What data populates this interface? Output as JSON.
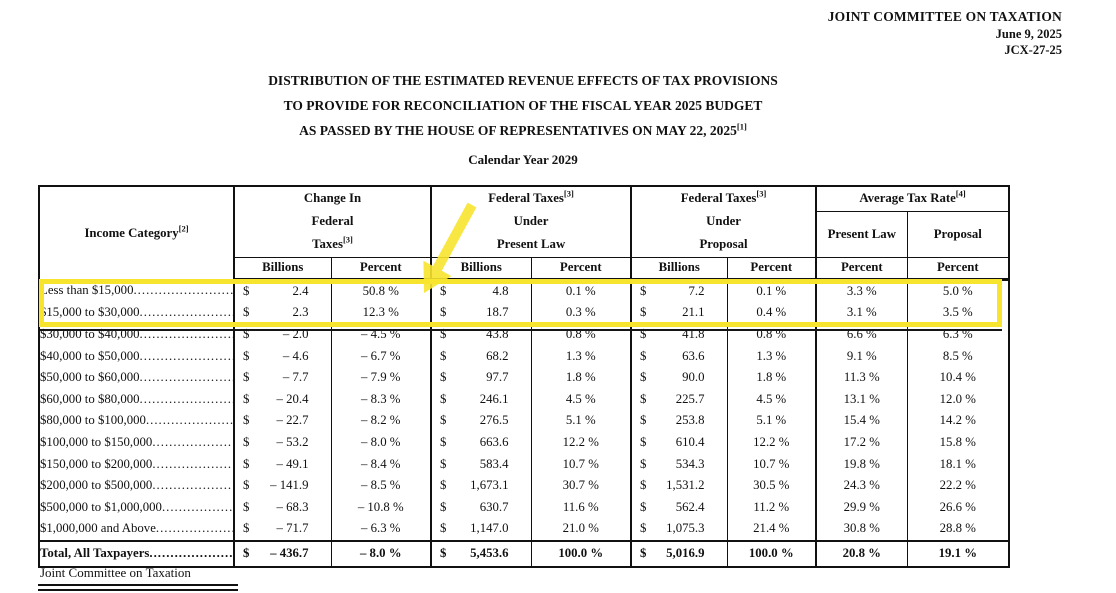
{
  "letterhead": {
    "organization": "JOINT COMMITTEE ON TAXATION",
    "date": "June 9, 2025",
    "document_number": "JCX-27-25"
  },
  "title": {
    "line1": "DISTRIBUTION OF THE ESTIMATED REVENUE EFFECTS OF TAX PROVISIONS",
    "line2": "TO PROVIDE FOR RECONCILIATION OF THE FISCAL YEAR 2025 BUDGET",
    "line3": "AS PASSED BY THE HOUSE OF REPRESENTATIVES ON MAY 22, 2025",
    "line3_footnote": "[1]",
    "subtitle": "Calendar Year 2029"
  },
  "table": {
    "header": {
      "income_category": {
        "text": "Income Category",
        "footnote": "[2]"
      },
      "change_group": {
        "line1": "Change In",
        "line2": "Federal",
        "line3": "Taxes",
        "footnote": "[3]"
      },
      "present_law_group": {
        "line1": "Federal Taxes",
        "footnote": "[3]",
        "line2": "Under",
        "line3": "Present Law"
      },
      "proposal_group": {
        "line1": "Federal Taxes",
        "footnote": "[3]",
        "line2": "Under",
        "line3": "Proposal"
      },
      "avg_rate_group": {
        "title": "Average Tax Rate",
        "footnote": "[4]",
        "col1": "Present\nLaw",
        "col2": "Proposal"
      },
      "sub_headers": [
        "Billions",
        "Percent",
        "Billions",
        "Percent",
        "Billions",
        "Percent",
        "Percent",
        "Percent"
      ],
      "currency_symbol": "$"
    },
    "rows": [
      {
        "category": "Less than $15,000",
        "change_billions": "2.4",
        "change_percent": "50.8 %",
        "present_law_billions": "4.8",
        "present_law_percent": "0.1 %",
        "proposal_billions": "7.2",
        "proposal_percent": "0.1 %",
        "rate_present_law": "3.3 %",
        "rate_proposal": "5.0 %"
      },
      {
        "category": "$15,000 to $30,000",
        "change_billions": "2.3",
        "change_percent": "12.3 %",
        "present_law_billions": "18.7",
        "present_law_percent": "0.3 %",
        "proposal_billions": "21.1",
        "proposal_percent": "0.4 %",
        "rate_present_law": "3.1 %",
        "rate_proposal": "3.5 %"
      },
      {
        "category": "$30,000 to $40,000",
        "change_billions": "– 2.0",
        "change_percent": "– 4.5 %",
        "present_law_billions": "43.8",
        "present_law_percent": "0.8 %",
        "proposal_billions": "41.8",
        "proposal_percent": "0.8 %",
        "rate_present_law": "6.6 %",
        "rate_proposal": "6.3 %"
      },
      {
        "category": "$40,000 to $50,000",
        "change_billions": "– 4.6",
        "change_percent": "– 6.7 %",
        "present_law_billions": "68.2",
        "present_law_percent": "1.3 %",
        "proposal_billions": "63.6",
        "proposal_percent": "1.3 %",
        "rate_present_law": "9.1 %",
        "rate_proposal": "8.5 %"
      },
      {
        "category": "$50,000 to $60,000",
        "change_billions": "– 7.7",
        "change_percent": "– 7.9 %",
        "present_law_billions": "97.7",
        "present_law_percent": "1.8 %",
        "proposal_billions": "90.0",
        "proposal_percent": "1.8 %",
        "rate_present_law": "11.3 %",
        "rate_proposal": "10.4 %"
      },
      {
        "category": "$60,000 to $80,000",
        "change_billions": "– 20.4",
        "change_percent": "– 8.3 %",
        "present_law_billions": "246.1",
        "present_law_percent": "4.5 %",
        "proposal_billions": "225.7",
        "proposal_percent": "4.5 %",
        "rate_present_law": "13.1 %",
        "rate_proposal": "12.0 %"
      },
      {
        "category": "$80,000 to $100,000",
        "change_billions": "– 22.7",
        "change_percent": "– 8.2 %",
        "present_law_billions": "276.5",
        "present_law_percent": "5.1 %",
        "proposal_billions": "253.8",
        "proposal_percent": "5.1 %",
        "rate_present_law": "15.4 %",
        "rate_proposal": "14.2 %"
      },
      {
        "category": "$100,000 to $150,000",
        "change_billions": "– 53.2",
        "change_percent": "– 8.0 %",
        "present_law_billions": "663.6",
        "present_law_percent": "12.2 %",
        "proposal_billions": "610.4",
        "proposal_percent": "12.2 %",
        "rate_present_law": "17.2 %",
        "rate_proposal": "15.8 %"
      },
      {
        "category": "$150,000 to $200,000",
        "change_billions": "– 49.1",
        "change_percent": "– 8.4 %",
        "present_law_billions": "583.4",
        "present_law_percent": "10.7 %",
        "proposal_billions": "534.3",
        "proposal_percent": "10.7 %",
        "rate_present_law": "19.8 %",
        "rate_proposal": "18.1 %"
      },
      {
        "category": "$200,000 to $500,000",
        "change_billions": "– 141.9",
        "change_percent": "– 8.5 %",
        "present_law_billions": "1,673.1",
        "present_law_percent": "30.7 %",
        "proposal_billions": "1,531.2",
        "proposal_percent": "30.5 %",
        "rate_present_law": "24.3 %",
        "rate_proposal": "22.2 %"
      },
      {
        "category": "$500,000 to $1,000,000",
        "change_billions": "– 68.3",
        "change_percent": "– 10.8 %",
        "present_law_billions": "630.7",
        "present_law_percent": "11.6 %",
        "proposal_billions": "562.4",
        "proposal_percent": "11.2 %",
        "rate_present_law": "29.9 %",
        "rate_proposal": "26.6 %"
      },
      {
        "category": "$1,000,000 and Above",
        "change_billions": "– 71.7",
        "change_percent": "– 6.3 %",
        "present_law_billions": "1,147.0",
        "present_law_percent": "21.0 %",
        "proposal_billions": "1,075.3",
        "proposal_percent": "21.4 %",
        "rate_present_law": "30.8 %",
        "rate_proposal": "28.8 %"
      }
    ],
    "total_row": {
      "category": "Total, All Taxpayers",
      "change_billions": "– 436.7",
      "change_percent": "– 8.0 %",
      "present_law_billions": "5,453.6",
      "present_law_percent": "100.0 %",
      "proposal_billions": "5,016.9",
      "proposal_percent": "100.0 %",
      "rate_present_law": "20.8 %",
      "rate_proposal": "19.1 %"
    },
    "footer": "Joint Committee on Taxation"
  },
  "annotations": {
    "highlight_color": "#f7e42e",
    "arrow_color": "#f7e42e",
    "underline_color": "#151515",
    "highlighted_rows": [
      "Less than $15,000",
      "$15,000 to $30,000"
    ]
  }
}
